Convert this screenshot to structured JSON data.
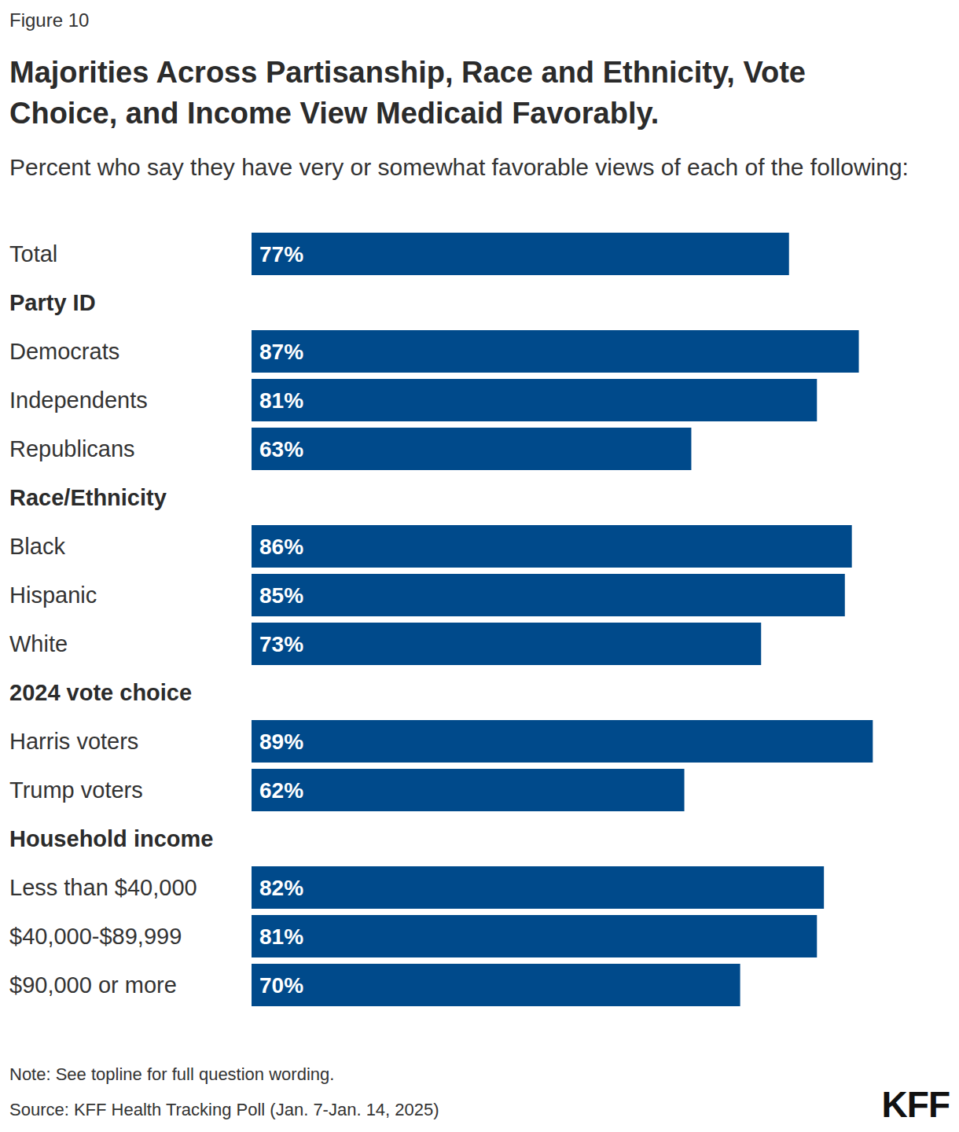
{
  "figure_label": "Figure 10",
  "note": "Note: See topline for full question wording.",
  "source": "Source: KFF Health Tracking Poll (Jan. 7-Jan. 14, 2025)",
  "logo": "KFF",
  "chart_data": {
    "type": "bar",
    "orientation": "horizontal",
    "title": "Majorities Across Partisanship, Race and Ethnicity, Vote Choice, and Income View Medicaid Favorably.",
    "subtitle": "Percent who say they have very or somewhat favorable views of each of the following:",
    "categories": [
      "Total",
      "Party ID",
      "Democrats",
      "Independents",
      "Republicans",
      "Race/Ethnicity",
      "Black",
      "Hispanic",
      "White",
      "2024 vote choice",
      "Harris voters",
      "Trump voters",
      "Household income",
      "Less than $40,000",
      "$40,000-$89,999",
      "$90,000 or more"
    ],
    "values": [
      77,
      null,
      87,
      81,
      63,
      null,
      86,
      85,
      73,
      null,
      89,
      62,
      null,
      82,
      81,
      70
    ],
    "value_labels": [
      "77%",
      null,
      "87%",
      "81%",
      "63%",
      null,
      "86%",
      "85%",
      "73%",
      null,
      "89%",
      "62%",
      null,
      "82%",
      "81%",
      "70%"
    ],
    "color": "#004a8b",
    "xlim": [
      0,
      100
    ],
    "data_labels": true,
    "tick_labels": "y",
    "grid": false
  }
}
